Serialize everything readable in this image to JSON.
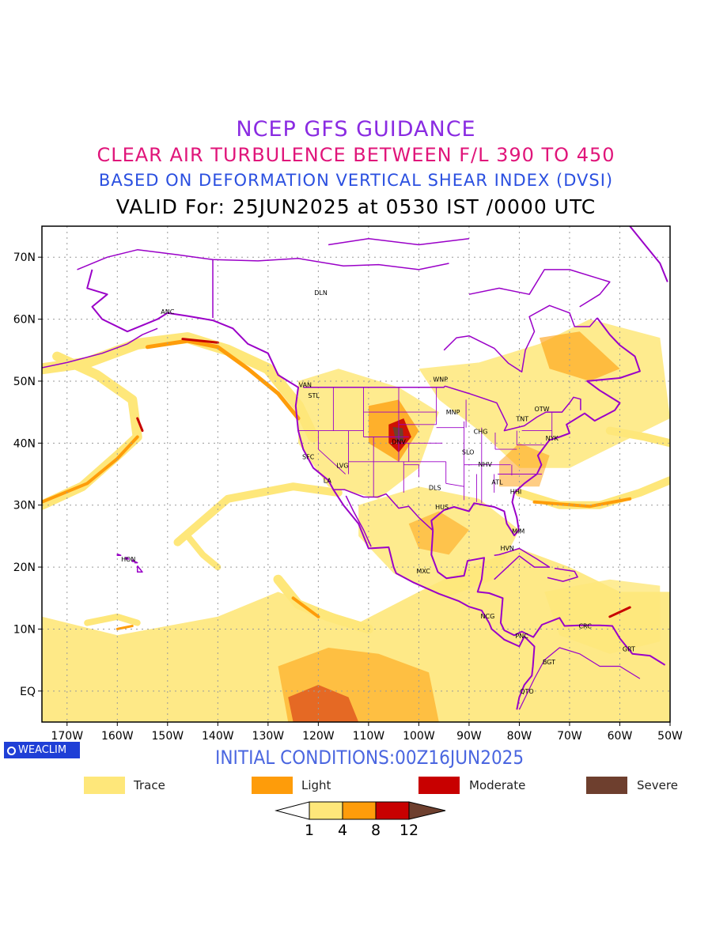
{
  "title": {
    "line1": "NCEP GFS GUIDANCE",
    "line2": "CLEAR AIR TURBULENCE BETWEEN F/L 390 TO 450",
    "line3": "BASED ON DEFORMATION VERTICAL SHEAR INDEX (DVSI)",
    "line4": "VALID For: 25JUN2025 at 0530 IST /0000 UTC"
  },
  "initial_conditions": "INITIAL CONDITIONS:00Z16JUN2025",
  "badge": "WEACLIM",
  "axes": {
    "lon_labels": [
      "170W",
      "160W",
      "150W",
      "140W",
      "130W",
      "120W",
      "110W",
      "100W",
      "90W",
      "80W",
      "70W",
      "60W",
      "50W"
    ],
    "lat_labels": [
      "70N",
      "60N",
      "50N",
      "40N",
      "30N",
      "20N",
      "10N",
      "EQ"
    ],
    "lon_range": [
      -175,
      -50
    ],
    "lat_range": [
      -5,
      75
    ]
  },
  "stations": [
    {
      "code": "ANC",
      "lon": -150.0,
      "lat": 61.2
    },
    {
      "code": "DLN",
      "lon": -119.5,
      "lat": 64.3
    },
    {
      "code": "VAN",
      "lon": -122.6,
      "lat": 49.4
    },
    {
      "code": "STL",
      "lon": -120.9,
      "lat": 47.7
    },
    {
      "code": "WNP",
      "lon": -95.7,
      "lat": 50.3
    },
    {
      "code": "MNP",
      "lon": -93.2,
      "lat": 45.0
    },
    {
      "code": "TNT",
      "lon": -79.4,
      "lat": 43.9
    },
    {
      "code": "OTW",
      "lon": -75.5,
      "lat": 45.5
    },
    {
      "code": "CHG",
      "lon": -87.7,
      "lat": 41.9
    },
    {
      "code": "NYK",
      "lon": -73.5,
      "lat": 40.8
    },
    {
      "code": "DNV",
      "lon": -104.0,
      "lat": 40.2
    },
    {
      "code": "SFC",
      "lon": -122.0,
      "lat": 37.8
    },
    {
      "code": "LVG",
      "lon": -115.2,
      "lat": 36.4
    },
    {
      "code": "SLO",
      "lon": -90.2,
      "lat": 38.6
    },
    {
      "code": "NHV",
      "lon": -86.8,
      "lat": 36.6
    },
    {
      "code": "LA",
      "lon": -118.2,
      "lat": 34.0
    },
    {
      "code": "DLS",
      "lon": -96.8,
      "lat": 32.8
    },
    {
      "code": "ATL",
      "lon": -84.4,
      "lat": 33.7
    },
    {
      "code": "HHI",
      "lon": -80.7,
      "lat": 32.2
    },
    {
      "code": "HUS",
      "lon": -95.4,
      "lat": 29.7
    },
    {
      "code": "MIM",
      "lon": -80.2,
      "lat": 25.8
    },
    {
      "code": "HVN",
      "lon": -82.4,
      "lat": 23.1
    },
    {
      "code": "HON",
      "lon": -157.8,
      "lat": 21.3
    },
    {
      "code": "MXC",
      "lon": -99.1,
      "lat": 19.4
    },
    {
      "code": "NCG",
      "lon": -86.3,
      "lat": 12.1
    },
    {
      "code": "CRC",
      "lon": -66.9,
      "lat": 10.5
    },
    {
      "code": "PNC",
      "lon": -79.5,
      "lat": 8.9
    },
    {
      "code": "GRT",
      "lon": -58.2,
      "lat": 6.8
    },
    {
      "code": "BGT",
      "lon": -74.1,
      "lat": 4.7
    },
    {
      "code": "QTO",
      "lon": -78.5,
      "lat": 0.0
    }
  ],
  "legend": {
    "categories": [
      {
        "label": "Trace",
        "color": "#fee77a"
      },
      {
        "label": "Light",
        "color": "#fe9c0a"
      },
      {
        "label": "Moderate",
        "color": "#c80000"
      },
      {
        "label": "Severe",
        "color": "#6e3f2e"
      }
    ],
    "colorbar_ticks": [
      "1",
      "4",
      "8",
      "12"
    ],
    "colorbar_colors": [
      "#ffffff",
      "#fee77a",
      "#fe9c0a",
      "#c80000",
      "#6e3f2e"
    ]
  },
  "colors": {
    "boundaries": "#9a00c8",
    "title1": "#8a2be2",
    "title2": "#e0157a",
    "title3": "#2a4fe0"
  }
}
